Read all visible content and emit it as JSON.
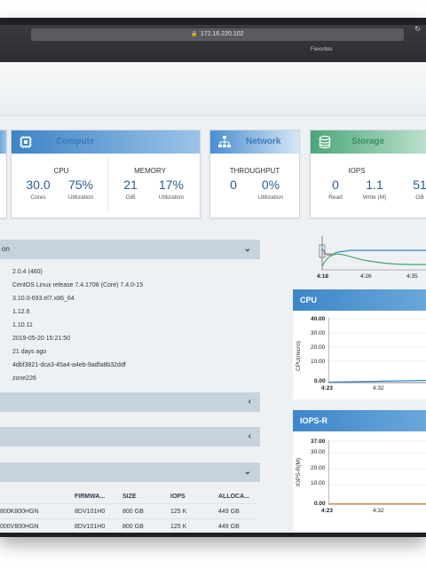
{
  "browser": {
    "url": "172.16.220.102",
    "favorites": "Favorites"
  },
  "cards": {
    "compute": {
      "title": "Compute",
      "cpu": {
        "label": "CPU",
        "cores_value": "30.0",
        "cores_unit": "Cores",
        "util_value": "75%",
        "util_unit": "Utilization"
      },
      "memory": {
        "label": "MEMORY",
        "gib_value": "21",
        "gib_unit": "GiB",
        "util_value": "17%",
        "util_unit": "Utilization"
      }
    },
    "network": {
      "title": "Network",
      "throughput": {
        "label": "THROUGHPUT",
        "value": "0",
        "util_value": "0%",
        "util_unit": "Utilization"
      }
    },
    "storage": {
      "title": "Storage",
      "iops": {
        "label": "IOPS",
        "read_value": "0",
        "read_unit": "Read",
        "write_value": "1.1",
        "write_unit": "Write (M)",
        "extra_value": "51",
        "extra_unit": "GB"
      }
    }
  },
  "info_section": {
    "title_fragment": "on",
    "lines": [
      "2.0.4 (460)",
      "CentOS Linux release 7.4.1708 (Core) 7.4.0-15",
      "3.10.0-693.el7.x86_64",
      "1.12.6",
      "1.10.11",
      "2019-05-20 15:21:50",
      "21 days ago",
      "4dbf3821-dca3-45a4-a4eb-9adfa8b32ddf",
      "zone226"
    ]
  },
  "disk_table": {
    "headers": [
      "FIRMWA...",
      "SIZE",
      "IOPS",
      "ALLOCA..."
    ],
    "rows": [
      {
        "model": "800K800HGN",
        "firmware": "8DV101H0",
        "size": "800 GB",
        "iops": "125 K",
        "alloc": "449 GB"
      },
      {
        "model": "000V800HGN",
        "firmware": "8DV101H0",
        "size": "800 GB",
        "iops": "125 K",
        "alloc": "449 GB"
      }
    ]
  },
  "mini_chart": {
    "x_ticks": [
      "4:18",
      "4:26",
      "4:35"
    ]
  },
  "cpu_chart": {
    "title": "CPU",
    "ylabel": "CPU(micro)",
    "y_ticks": [
      "40.00",
      "30.00",
      "20.00",
      "10.00",
      "0.00"
    ],
    "x_ticks": [
      "4:23",
      "4:32"
    ]
  },
  "iops_chart": {
    "title": "IOPS-R",
    "ylabel": "IOPS-R(M)",
    "y_ticks": [
      "37.00",
      "30.00",
      "20.00",
      "10.00",
      "0.00"
    ],
    "x_ticks": [
      "4:23",
      "4:32"
    ]
  }
}
